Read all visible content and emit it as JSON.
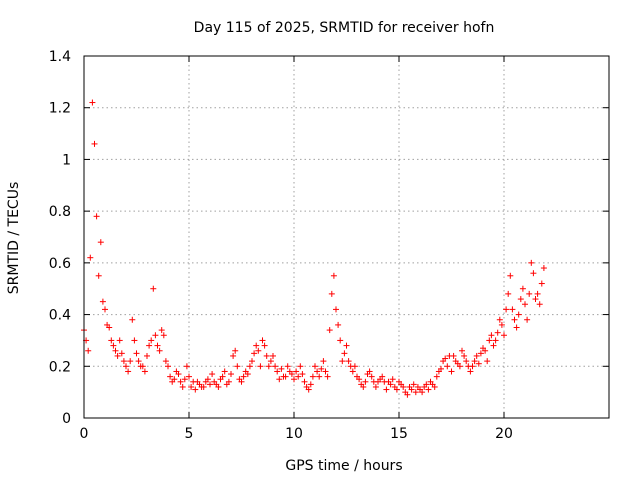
{
  "chart_data": {
    "type": "scatter",
    "title": "Day 115 of 2025, SRMTID for receiver hofn",
    "xlabel": "GPS time / hours",
    "ylabel": "SRMTID / TECUs",
    "xlim": [
      0,
      25
    ],
    "ylim": [
      0,
      1.4
    ],
    "x_ticks": [
      0,
      5,
      10,
      15,
      20
    ],
    "x_tick_labels": [
      "0",
      "5",
      "10",
      "15",
      "20"
    ],
    "y_ticks": [
      0,
      0.2,
      0.4,
      0.6,
      0.8,
      1,
      1.2,
      1.4
    ],
    "y_tick_labels": [
      "0",
      "0.2",
      "0.4",
      "0.6",
      "0.8",
      "1",
      "1.2",
      "1.4"
    ],
    "grid": true,
    "marker": "plus",
    "series_color": "#ff0000",
    "series": [
      {
        "name": "SRMTID",
        "x_start": 0.0,
        "x_step": 0.1,
        "y": [
          0.34,
          0.3,
          0.26,
          0.62,
          1.22,
          1.06,
          0.78,
          0.55,
          0.68,
          0.45,
          0.42,
          0.36,
          0.35,
          0.3,
          0.28,
          0.26,
          0.24,
          0.3,
          0.25,
          0.22,
          0.2,
          0.18,
          0.22,
          0.38,
          0.3,
          0.25,
          0.22,
          0.2,
          0.2,
          0.18,
          0.24,
          0.28,
          0.3,
          0.5,
          0.32,
          0.28,
          0.26,
          0.34,
          0.32,
          0.22,
          0.2,
          0.16,
          0.14,
          0.15,
          0.18,
          0.17,
          0.14,
          0.12,
          0.15,
          0.2,
          0.16,
          0.12,
          0.14,
          0.11,
          0.14,
          0.13,
          0.12,
          0.12,
          0.14,
          0.15,
          0.13,
          0.17,
          0.14,
          0.13,
          0.12,
          0.15,
          0.16,
          0.18,
          0.13,
          0.14,
          0.17,
          0.24,
          0.26,
          0.2,
          0.15,
          0.14,
          0.16,
          0.18,
          0.17,
          0.2,
          0.22,
          0.25,
          0.28,
          0.26,
          0.2,
          0.3,
          0.28,
          0.24,
          0.2,
          0.22,
          0.24,
          0.2,
          0.18,
          0.15,
          0.19,
          0.16,
          0.16,
          0.2,
          0.18,
          0.17,
          0.15,
          0.18,
          0.16,
          0.2,
          0.17,
          0.14,
          0.12,
          0.11,
          0.13,
          0.16,
          0.2,
          0.18,
          0.16,
          0.19,
          0.22,
          0.18,
          0.16,
          0.34,
          0.48,
          0.55,
          0.42,
          0.36,
          0.3,
          0.22,
          0.25,
          0.28,
          0.22,
          0.2,
          0.18,
          0.2,
          0.16,
          0.15,
          0.13,
          0.12,
          0.14,
          0.17,
          0.18,
          0.16,
          0.14,
          0.12,
          0.14,
          0.15,
          0.16,
          0.14,
          0.11,
          0.14,
          0.13,
          0.15,
          0.12,
          0.11,
          0.14,
          0.13,
          0.12,
          0.1,
          0.09,
          0.12,
          0.11,
          0.13,
          0.1,
          0.12,
          0.11,
          0.1,
          0.12,
          0.13,
          0.11,
          0.14,
          0.13,
          0.12,
          0.16,
          0.18,
          0.19,
          0.22,
          0.23,
          0.2,
          0.24,
          0.18,
          0.24,
          0.22,
          0.21,
          0.2,
          0.26,
          0.24,
          0.22,
          0.2,
          0.18,
          0.2,
          0.22,
          0.24,
          0.21,
          0.25,
          0.27,
          0.26,
          0.22,
          0.3,
          0.32,
          0.28,
          0.3,
          0.33,
          0.38,
          0.36,
          0.32,
          0.42,
          0.48,
          0.55,
          0.42,
          0.38,
          0.35,
          0.4,
          0.46,
          0.5,
          0.44,
          0.38,
          0.48,
          0.6,
          0.56,
          0.46,
          0.48,
          0.44,
          0.52,
          0.58
        ]
      }
    ]
  }
}
